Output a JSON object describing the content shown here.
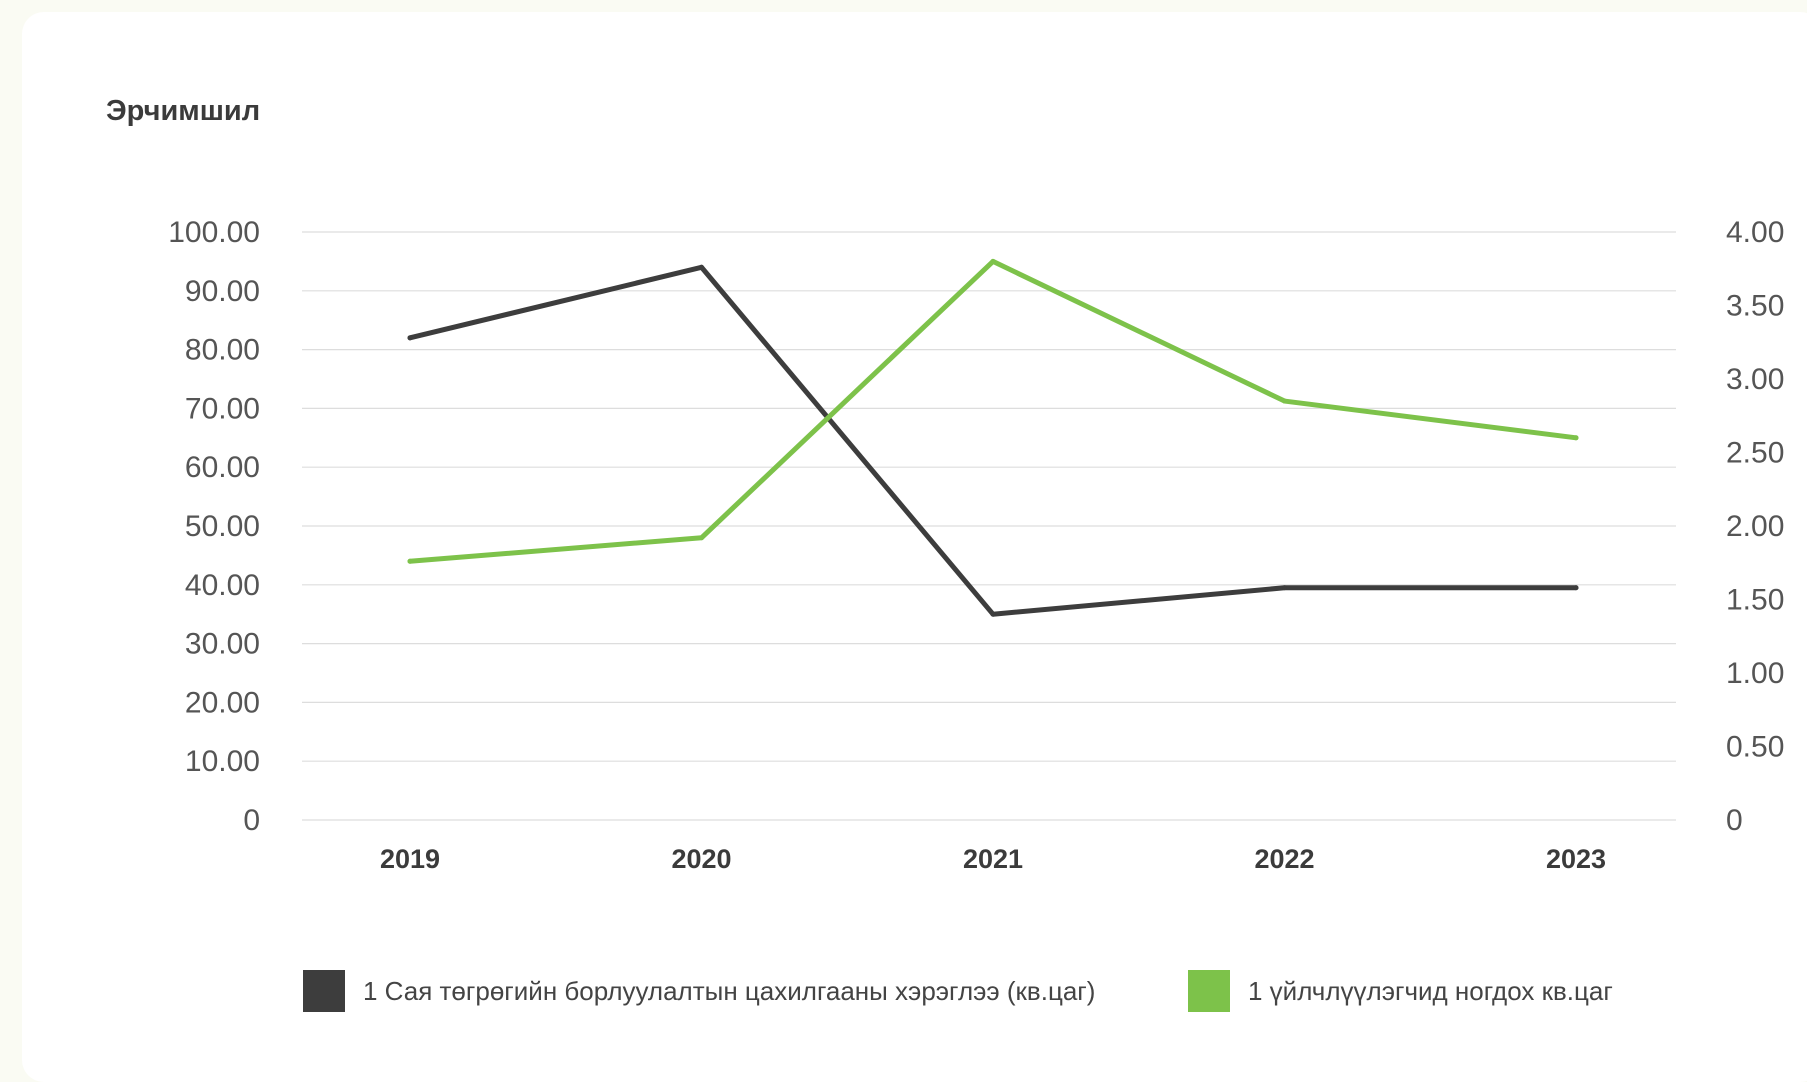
{
  "title": "Эрчимшил",
  "colors": {
    "page_bg": "#fafbf3",
    "card_bg": "#ffffff",
    "series_dark": "#3d3d3d",
    "series_green": "#7dc24a",
    "grid": "#dddddd",
    "tick_text": "#555555"
  },
  "chart_data": {
    "type": "line",
    "title": "Эрчимшил",
    "categories": [
      "2019",
      "2020",
      "2021",
      "2022",
      "2023"
    ],
    "y_left": {
      "range": [
        0,
        100
      ],
      "ticks": [
        "100.00",
        "90.00",
        "80.00",
        "70.00",
        "60.00",
        "50.00",
        "40.00",
        "30.00",
        "20.00",
        "10.00",
        "0"
      ]
    },
    "y_right": {
      "range": [
        0,
        4
      ],
      "ticks": [
        "4.00",
        "3.50",
        "3.00",
        "2.50",
        "2.00",
        "1.50",
        "1.00",
        "0.50",
        "0"
      ]
    },
    "grid": true,
    "legend_position": "bottom",
    "series": [
      {
        "name": "1 Сая төгрөгийн борлуулалтын цахилгааны хэрэглээ (кв.цаг)",
        "axis": "left",
        "color": "#3d3d3d",
        "values": [
          82,
          94,
          35,
          39.5,
          39.5
        ]
      },
      {
        "name": "1 үйлчлүүлэгчид ногдох кв.цаг",
        "axis": "right",
        "color": "#7dc24a",
        "values": [
          1.76,
          1.92,
          3.8,
          2.85,
          2.6
        ]
      }
    ]
  }
}
